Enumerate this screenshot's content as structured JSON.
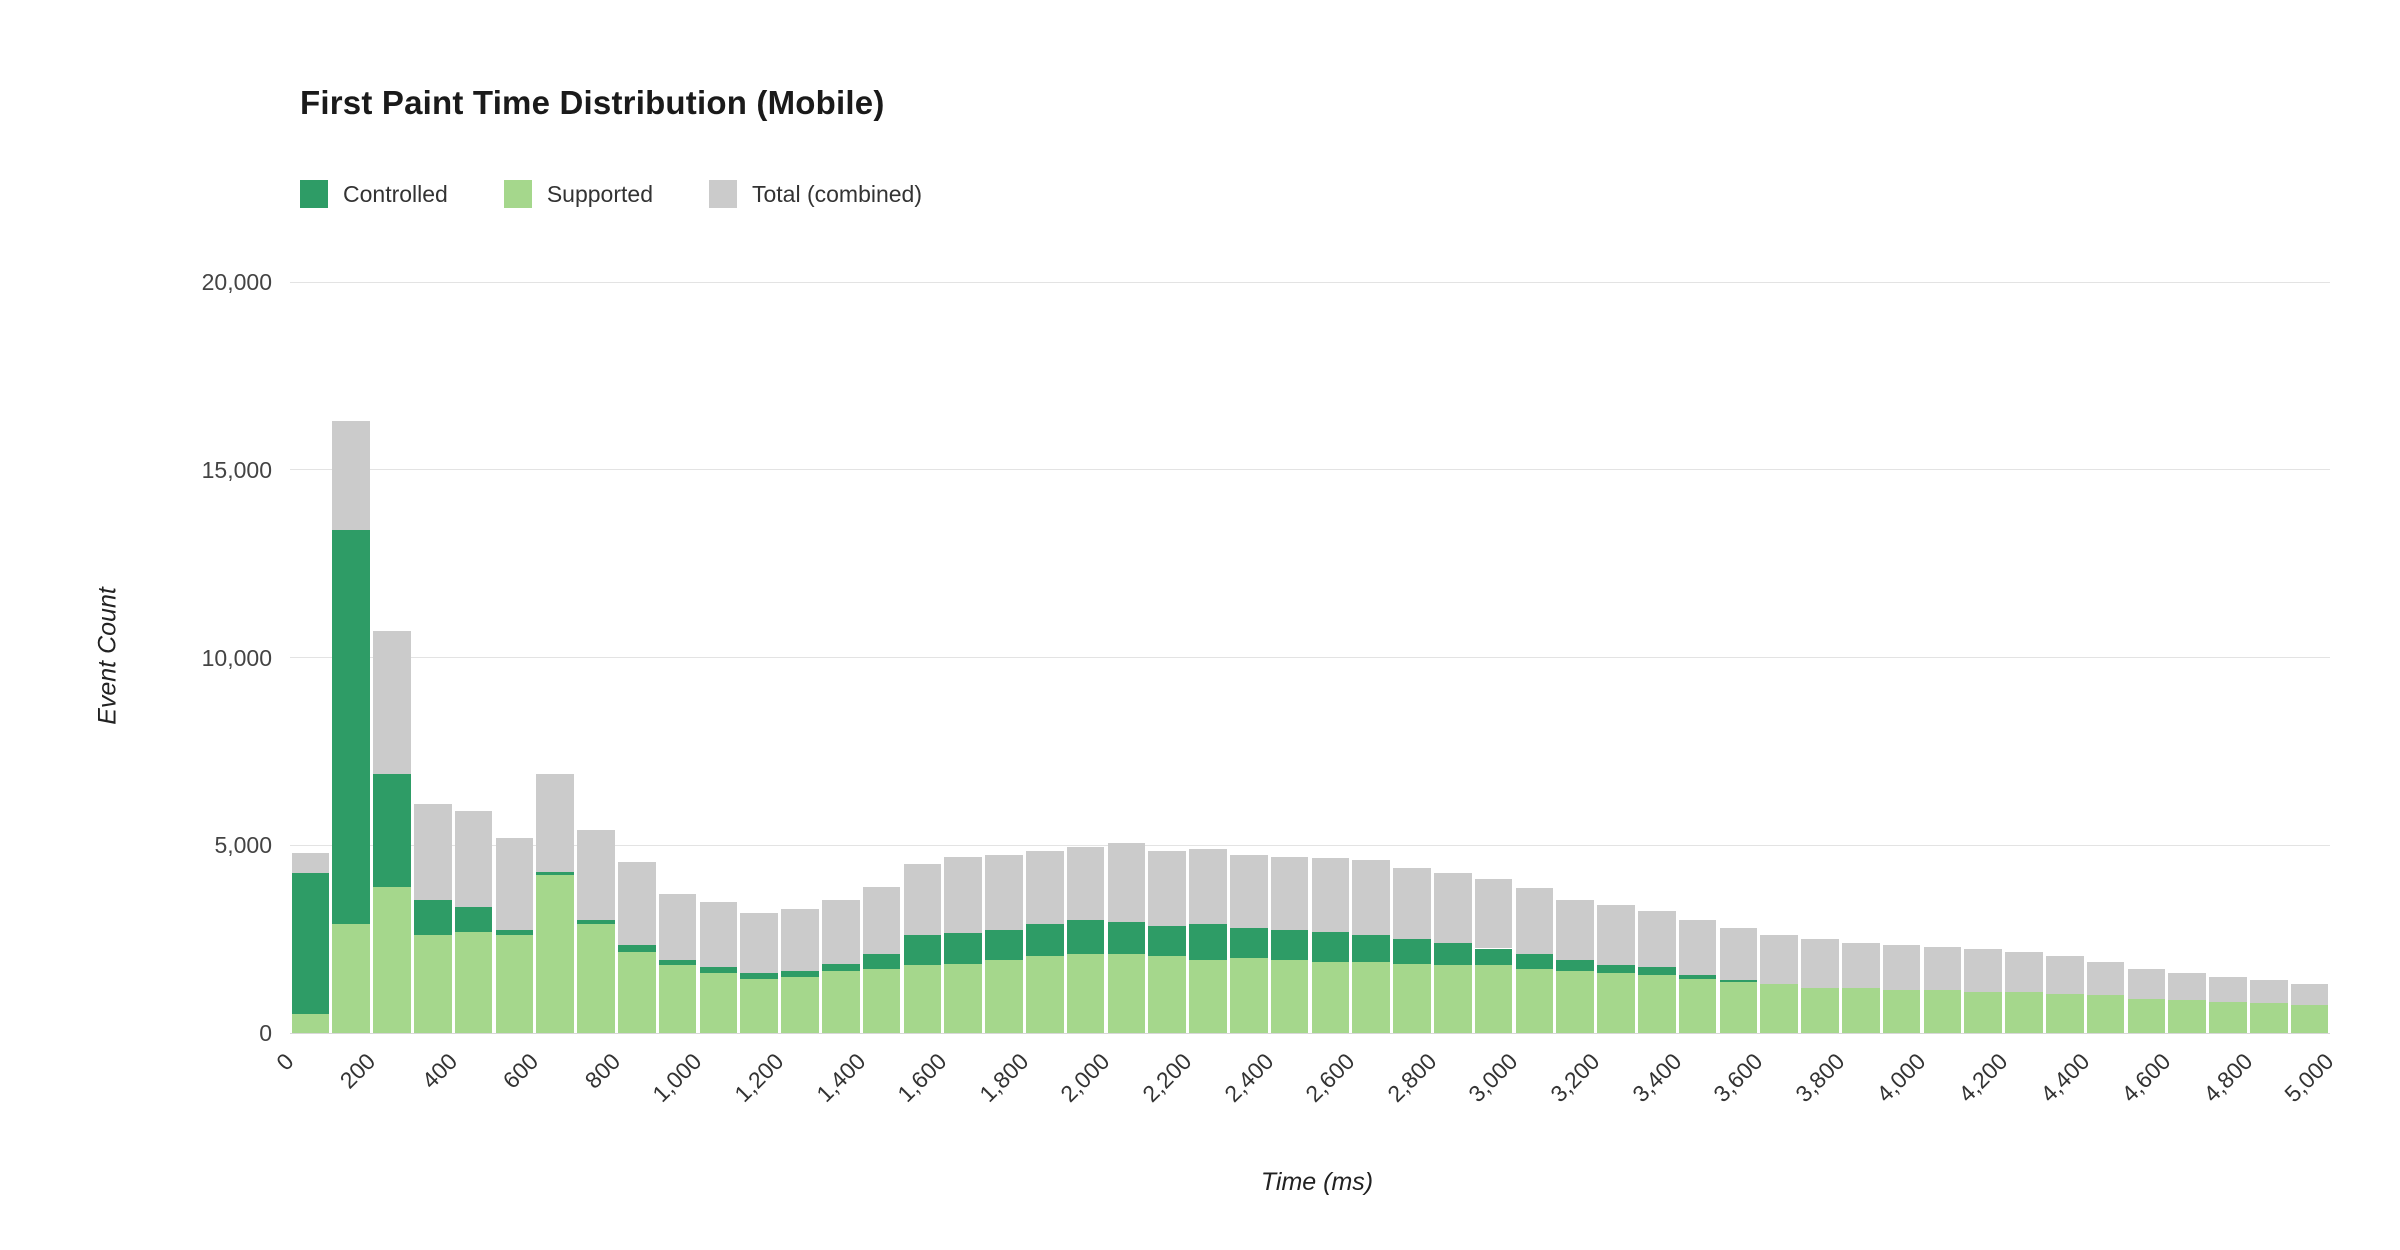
{
  "page": {
    "background": "#ffffff"
  },
  "chart_data": {
    "type": "bar",
    "variant": "stacked-histogram",
    "title": "First Paint Time Distribution (Mobile)",
    "xlabel": "Time (ms)",
    "ylabel": "Event Count",
    "xlim": [
      0,
      5000
    ],
    "ylim": [
      0,
      20000
    ],
    "bin_width_ms": 100,
    "grid": true,
    "legend_position": "top-left",
    "stacking_order_bottom_to_top": [
      "Supported",
      "Controlled",
      "Total (combined) remainder"
    ],
    "y_ticks": [
      {
        "value": 0,
        "label": "0"
      },
      {
        "value": 5000,
        "label": "5,000"
      },
      {
        "value": 10000,
        "label": "10,000"
      },
      {
        "value": 15000,
        "label": "15,000"
      },
      {
        "value": 20000,
        "label": "20,000"
      }
    ],
    "x_ticks": [
      {
        "value": 0,
        "label": "0"
      },
      {
        "value": 200,
        "label": "200"
      },
      {
        "value": 400,
        "label": "400"
      },
      {
        "value": 600,
        "label": "600"
      },
      {
        "value": 800,
        "label": "800"
      },
      {
        "value": 1000,
        "label": "1,000"
      },
      {
        "value": 1200,
        "label": "1,200"
      },
      {
        "value": 1400,
        "label": "1,400"
      },
      {
        "value": 1600,
        "label": "1,600"
      },
      {
        "value": 1800,
        "label": "1,800"
      },
      {
        "value": 2000,
        "label": "2,000"
      },
      {
        "value": 2200,
        "label": "2,200"
      },
      {
        "value": 2400,
        "label": "2,400"
      },
      {
        "value": 2600,
        "label": "2,600"
      },
      {
        "value": 2800,
        "label": "2,800"
      },
      {
        "value": 3000,
        "label": "3,000"
      },
      {
        "value": 3200,
        "label": "3,200"
      },
      {
        "value": 3400,
        "label": "3,400"
      },
      {
        "value": 3600,
        "label": "3,600"
      },
      {
        "value": 3800,
        "label": "3,800"
      },
      {
        "value": 4000,
        "label": "4,000"
      },
      {
        "value": 4200,
        "label": "4,200"
      },
      {
        "value": 4400,
        "label": "4,400"
      },
      {
        "value": 4600,
        "label": "4,600"
      },
      {
        "value": 4800,
        "label": "4,800"
      },
      {
        "value": 5000,
        "label": "5,000"
      }
    ],
    "x": [
      0,
      100,
      200,
      300,
      400,
      500,
      600,
      700,
      800,
      900,
      1000,
      1100,
      1200,
      1300,
      1400,
      1500,
      1600,
      1700,
      1800,
      1900,
      2000,
      2100,
      2200,
      2300,
      2400,
      2500,
      2600,
      2700,
      2800,
      2900,
      3000,
      3100,
      3200,
      3300,
      3400,
      3500,
      3600,
      3700,
      3800,
      3900,
      4000,
      4100,
      4200,
      4300,
      4400,
      4500,
      4600,
      4700,
      4800,
      4900
    ],
    "series": [
      {
        "name": "Controlled",
        "color": "#2e9c66",
        "values": [
          3750,
          10500,
          3000,
          950,
          650,
          150,
          100,
          100,
          200,
          150,
          150,
          150,
          150,
          200,
          400,
          800,
          800,
          800,
          850,
          900,
          850,
          800,
          950,
          800,
          800,
          800,
          700,
          650,
          600,
          450,
          400,
          300,
          200,
          200,
          100,
          50,
          0,
          0,
          0,
          0,
          0,
          0,
          0,
          0,
          0,
          0,
          0,
          0,
          0,
          0
        ]
      },
      {
        "name": "Supported",
        "color": "#a5d78c",
        "values": [
          500,
          2900,
          3900,
          2600,
          2700,
          2600,
          4200,
          2900,
          2150,
          1800,
          1600,
          1450,
          1500,
          1650,
          1700,
          1800,
          1850,
          1950,
          2050,
          2100,
          2100,
          2050,
          1950,
          2000,
          1950,
          1900,
          1900,
          1850,
          1800,
          1800,
          1700,
          1650,
          1600,
          1550,
          1450,
          1350,
          1300,
          1200,
          1200,
          1150,
          1150,
          1100,
          1100,
          1050,
          1000,
          900,
          870,
          830,
          790,
          740
        ]
      },
      {
        "name": "Total (combined)",
        "color": "#cbcbcb",
        "values": [
          4800,
          16300,
          10700,
          6100,
          5900,
          5200,
          6900,
          5400,
          4550,
          3700,
          3500,
          3200,
          3300,
          3550,
          3900,
          4500,
          4700,
          4750,
          4850,
          4950,
          5050,
          4850,
          4900,
          4750,
          4700,
          4650,
          4600,
          4400,
          4250,
          4100,
          3850,
          3550,
          3400,
          3250,
          3000,
          2800,
          2600,
          2500,
          2400,
          2350,
          2300,
          2250,
          2150,
          2050,
          1900,
          1700,
          1600,
          1500,
          1400,
          1300
        ]
      }
    ]
  }
}
